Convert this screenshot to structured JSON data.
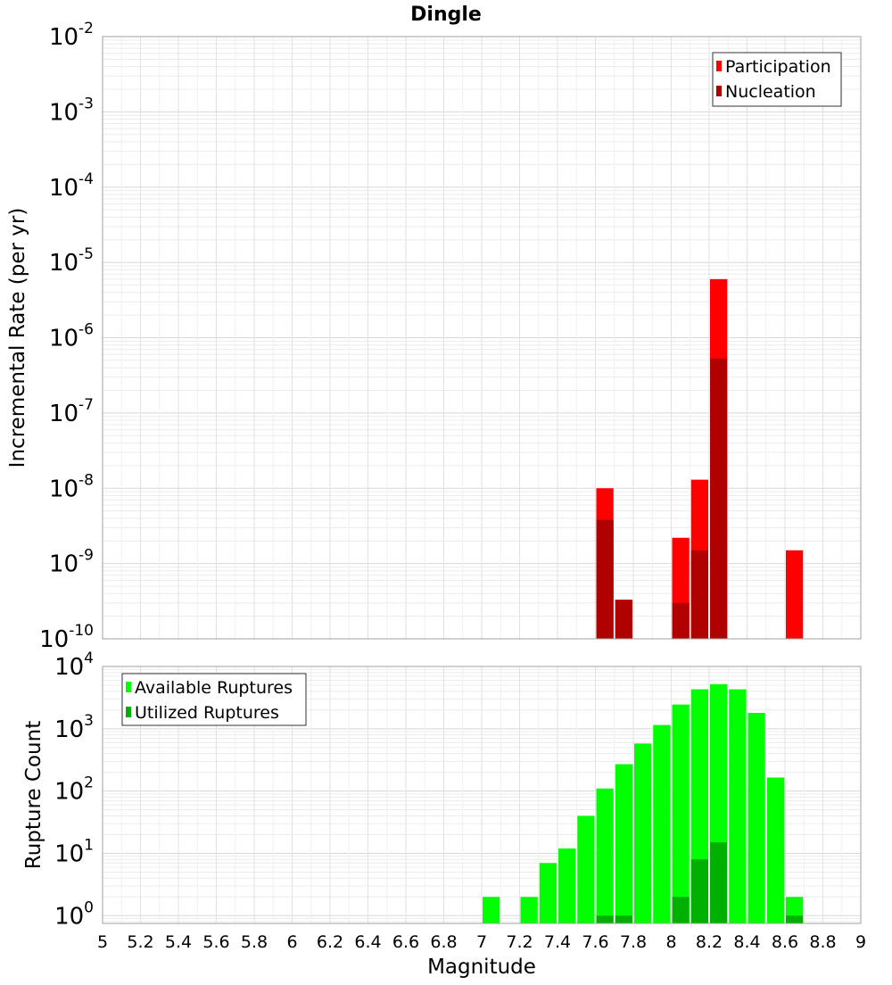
{
  "chart_data": [
    {
      "type": "bar",
      "title": "Dingle",
      "xlabel": "",
      "ylabel": "Incremental Rate (per yr)",
      "x_bin_width": 0.1,
      "xlim": [
        5,
        9
      ],
      "ylim": [
        1e-10,
        0.01
      ],
      "yscale": "log",
      "grid": true,
      "legend_position": "top-right",
      "y_tick_exponents": [
        -10,
        -9,
        -8,
        -7,
        -6,
        -5,
        -4,
        -3,
        -2
      ],
      "y_tick_base": "10",
      "colors": {
        "Participation": "#ff0000",
        "Nucleation": "#b00000"
      },
      "series": [
        {
          "name": "Participation",
          "points": [
            {
              "x": 7.65,
              "y": 1e-08
            },
            {
              "x": 7.75,
              "y": 3.3e-10
            },
            {
              "x": 8.05,
              "y": 2.2e-09
            },
            {
              "x": 8.15,
              "y": 1.3e-08
            },
            {
              "x": 8.25,
              "y": 6e-06
            },
            {
              "x": 8.65,
              "y": 1.5e-09
            }
          ]
        },
        {
          "name": "Nucleation",
          "points": [
            {
              "x": 7.65,
              "y": 3.8e-09
            },
            {
              "x": 7.75,
              "y": 3.3e-10
            },
            {
              "x": 8.05,
              "y": 3e-10
            },
            {
              "x": 8.15,
              "y": 1.5e-09
            },
            {
              "x": 8.25,
              "y": 5.3e-07
            }
          ]
        }
      ]
    },
    {
      "type": "bar",
      "title": "",
      "xlabel": "Magnitude",
      "ylabel": "Rupture Count",
      "x_bin_width": 0.1,
      "xlim": [
        5,
        9
      ],
      "ylim": [
        0.75,
        10000
      ],
      "yscale": "log",
      "grid": true,
      "legend_position": "top-left",
      "y_tick_exponents": [
        0,
        1,
        2,
        3,
        4
      ],
      "y_tick_base": "10",
      "x_ticks": [
        "5",
        "5.2",
        "5.4",
        "5.6",
        "5.8",
        "6",
        "6.2",
        "6.4",
        "6.6",
        "6.8",
        "7",
        "7.2",
        "7.4",
        "7.6",
        "7.8",
        "8",
        "8.2",
        "8.4",
        "8.6",
        "8.8",
        "9"
      ],
      "colors": {
        "Available Ruptures": "#00ff00",
        "Utilized Ruptures": "#00b000"
      },
      "series": [
        {
          "name": "Available Ruptures",
          "points": [
            {
              "x": 7.05,
              "y": 2
            },
            {
              "x": 7.25,
              "y": 2
            },
            {
              "x": 7.35,
              "y": 7
            },
            {
              "x": 7.45,
              "y": 12
            },
            {
              "x": 7.55,
              "y": 40
            },
            {
              "x": 7.65,
              "y": 110
            },
            {
              "x": 7.75,
              "y": 270
            },
            {
              "x": 7.85,
              "y": 580
            },
            {
              "x": 7.95,
              "y": 1150
            },
            {
              "x": 8.05,
              "y": 2450
            },
            {
              "x": 8.15,
              "y": 4300
            },
            {
              "x": 8.25,
              "y": 5200
            },
            {
              "x": 8.35,
              "y": 4300
            },
            {
              "x": 8.45,
              "y": 1800
            },
            {
              "x": 8.55,
              "y": 165
            },
            {
              "x": 8.65,
              "y": 2
            }
          ]
        },
        {
          "name": "Utilized Ruptures",
          "points": [
            {
              "x": 7.65,
              "y": 1
            },
            {
              "x": 7.75,
              "y": 1
            },
            {
              "x": 8.05,
              "y": 2
            },
            {
              "x": 8.15,
              "y": 8
            },
            {
              "x": 8.25,
              "y": 15
            },
            {
              "x": 8.65,
              "y": 1
            }
          ]
        }
      ]
    }
  ]
}
